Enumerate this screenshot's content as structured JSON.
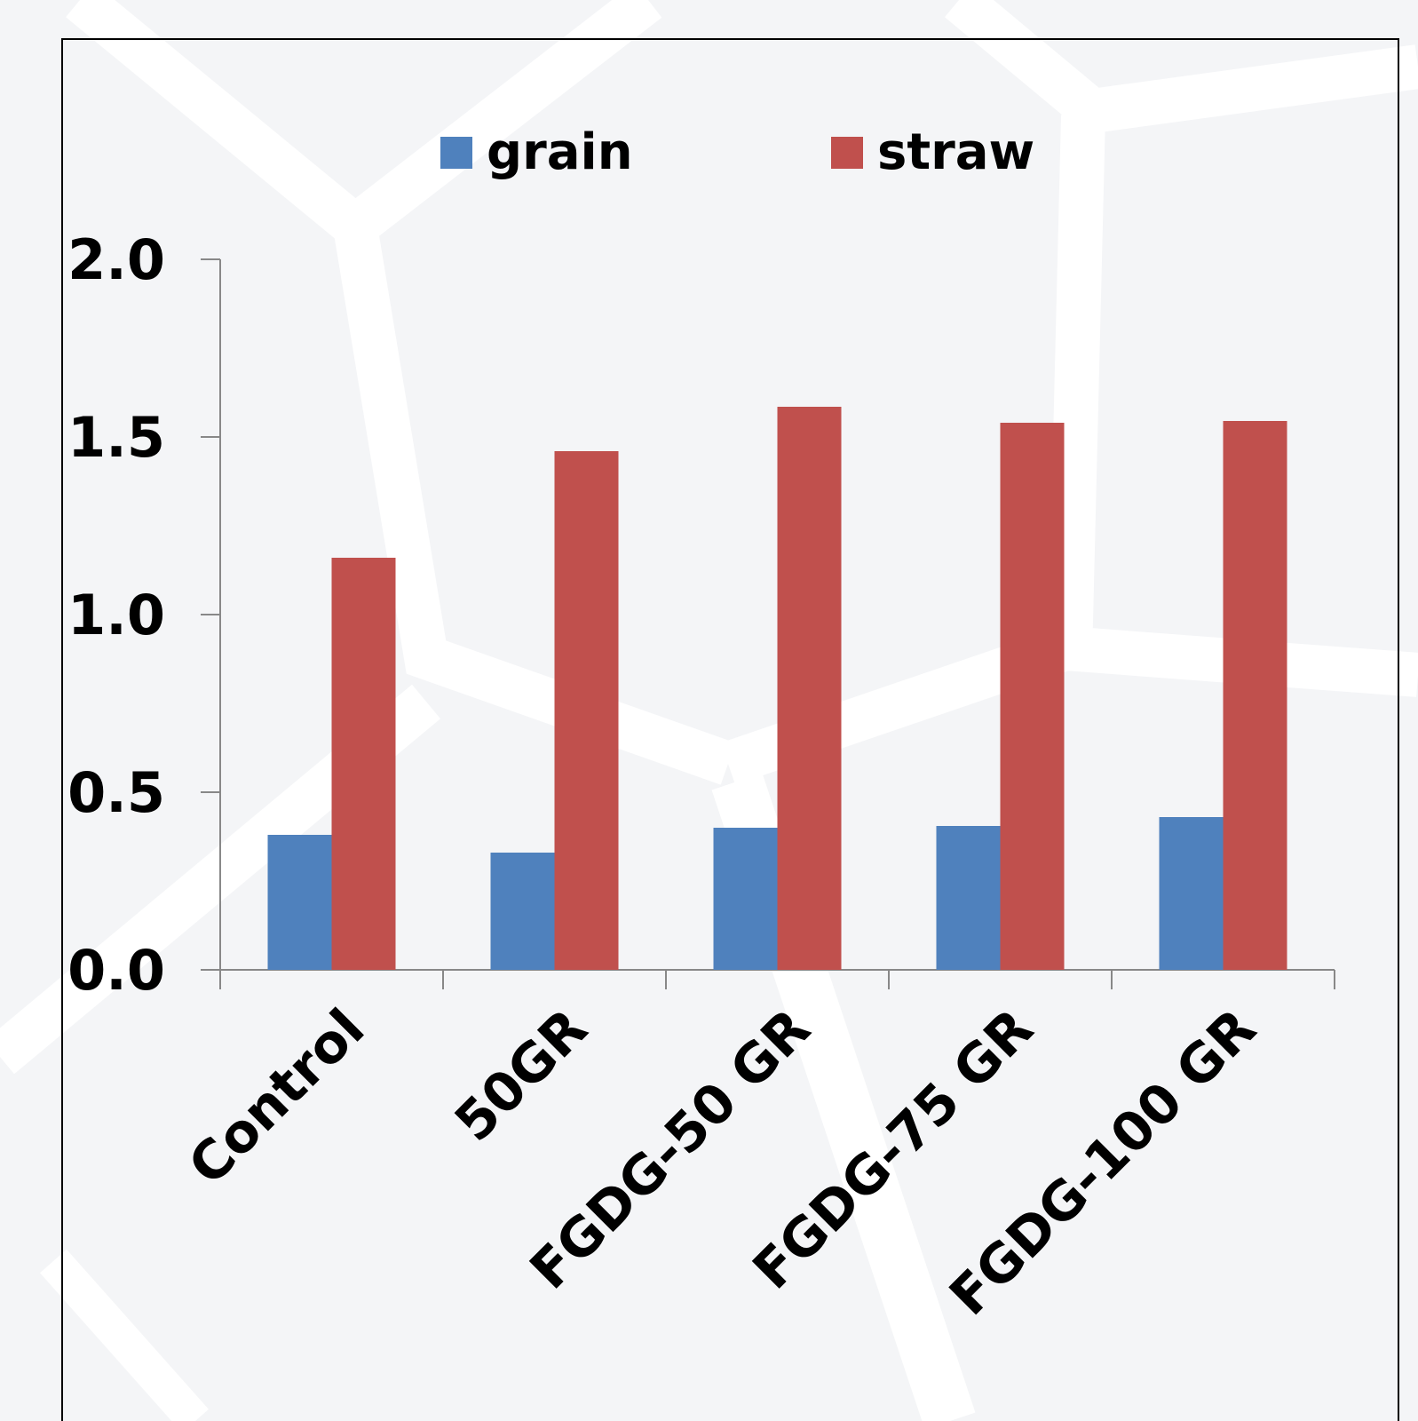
{
  "chart_data": {
    "type": "bar",
    "title": "",
    "xlabel": "",
    "ylabel": "",
    "ylim": [
      0,
      2.0
    ],
    "yticks": [
      "0.0",
      "0.5",
      "1.0",
      "1.5",
      "2.0"
    ],
    "ytick_values": [
      0,
      0.5,
      1.0,
      1.5,
      2.0
    ],
    "categories": [
      "Control",
      "50GR",
      "FGDG-50 GR",
      "FGDG-75 GR",
      "FGDG-100 GR"
    ],
    "series": [
      {
        "name": "grain",
        "color": "#4f81bd",
        "values": [
          0.38,
          0.33,
          0.4,
          0.405,
          0.43
        ]
      },
      {
        "name": "straw",
        "color": "#c0504d",
        "values": [
          1.16,
          1.46,
          1.585,
          1.54,
          1.545
        ]
      }
    ],
    "legend_position": "top",
    "grid": false
  }
}
